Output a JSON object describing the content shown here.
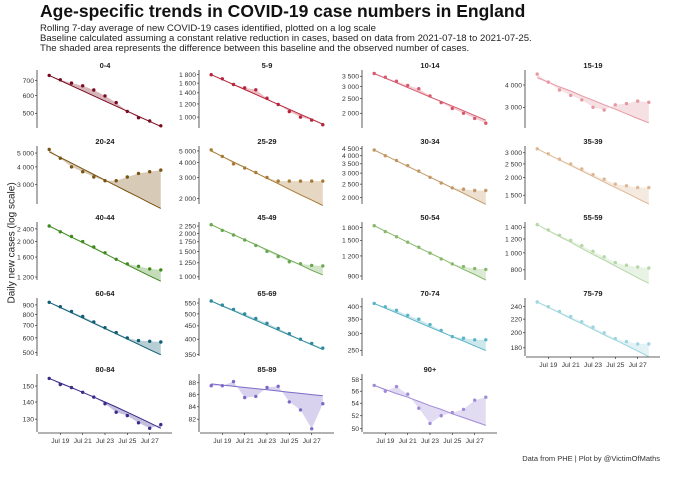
{
  "title": "Age-specific trends in COVID-19 case numbers in England",
  "subtitle_lines": [
    "Rolling 7-day average of new COVID-19 cases identified, plotted on a log scale",
    "Baseline calculated assuming a constant relative reduction in cases, based on data from 2021-07-18 to 2021-07-25.",
    "The shaded area represents the difference between this baseline and the observed number of cases."
  ],
  "y_axis_label": "Daily new cases (log scale)",
  "caption": "Data from PHE | Plot by @VictimOfMaths",
  "x_tick_labels": [
    "Jul 19",
    "Jul 21",
    "Jul 23",
    "Jul 25",
    "Jul 27"
  ],
  "chart_data": {
    "type": "line",
    "scale": "log",
    "x": [
      "2021-07-18",
      "2021-07-19",
      "2021-07-20",
      "2021-07-21",
      "2021-07-22",
      "2021-07-23",
      "2021-07-24",
      "2021-07-25",
      "2021-07-26",
      "2021-07-27",
      "2021-07-28"
    ],
    "xlim": [
      "2021-07-17",
      "2021-07-29"
    ],
    "panels": [
      {
        "label": "0-4",
        "color": "#7a0a1e",
        "yticks": [
          500,
          600,
          700
        ],
        "yticklabels": [
          "500",
          "600",
          "700"
        ],
        "ylim": [
          430,
          780
        ],
        "values": [
          738,
          705,
          682,
          663,
          635,
          598,
          558,
          510,
          478,
          462,
          440
        ],
        "baseline": [
          738,
          700,
          664,
          630,
          598,
          567,
          538,
          511,
          485,
          460,
          437
        ]
      },
      {
        "label": "5-9",
        "color": "#b8243a",
        "yticks": [
          1000,
          1200,
          1400,
          1600,
          1800
        ],
        "yticklabels": [
          "1 000",
          "1 200",
          "1 400",
          "1 600",
          "1 800"
        ],
        "ylim": [
          860,
          1920
        ],
        "values": [
          1800,
          1700,
          1570,
          1500,
          1460,
          1300,
          1190,
          1080,
          1000,
          960,
          900
        ],
        "baseline": [
          1800,
          1680,
          1570,
          1466,
          1369,
          1278,
          1193,
          1114,
          1040,
          971,
          907
        ]
      },
      {
        "label": "10-14",
        "color": "#d65b6e",
        "yticks": [
          2000,
          2500,
          3000,
          3500
        ],
        "yticklabels": [
          "2 000",
          "2 500",
          "3 000",
          "3 500"
        ],
        "ylim": [
          1600,
          3850
        ],
        "values": [
          3650,
          3450,
          3250,
          3050,
          2900,
          2600,
          2350,
          2150,
          2000,
          1850,
          1720
        ],
        "baseline": [
          3650,
          3400,
          3170,
          2950,
          2750,
          2560,
          2390,
          2230,
          2080,
          1930,
          1800
        ]
      },
      {
        "label": "15-19",
        "color": "#e597a2",
        "yticks": [
          3000,
          4000
        ],
        "yticklabels": [
          "3 000",
          "4 000"
        ],
        "ylim": [
          2300,
          4850
        ],
        "values": [
          4600,
          4150,
          3750,
          3500,
          3300,
          3000,
          2900,
          3100,
          3150,
          3250,
          3200
        ],
        "baseline": [
          4400,
          4150,
          3900,
          3700,
          3480,
          3290,
          3100,
          2930,
          2760,
          2600,
          2460
        ]
      },
      {
        "label": "20-24",
        "color": "#7a5312",
        "yticks": [
          3000,
          4000,
          5000
        ],
        "yticklabels": [
          "3 000",
          "4 000",
          "5 000"
        ],
        "ylim": [
          2200,
          5600
        ],
        "values": [
          5300,
          4600,
          4000,
          3700,
          3400,
          3200,
          3200,
          3400,
          3600,
          3700,
          3800
        ],
        "baseline": [
          5100,
          4650,
          4250,
          3880,
          3540,
          3230,
          2950,
          2690,
          2460,
          2240,
          2050
        ]
      },
      {
        "label": "25-29",
        "color": "#a87a36",
        "yticks": [
          2000,
          3000,
          4000,
          5000
        ],
        "yticklabels": [
          "2 000",
          "3 000",
          "4 000",
          "5 000"
        ],
        "ylim": [
          1800,
          5500
        ],
        "values": [
          5100,
          4500,
          3900,
          3600,
          3300,
          3000,
          2800,
          2800,
          2800,
          2800,
          2800
        ],
        "baseline": [
          5000,
          4500,
          4050,
          3650,
          3280,
          2950,
          2660,
          2390,
          2150,
          1940,
          1750
        ]
      },
      {
        "label": "30-34",
        "color": "#c29866",
        "yticks": [
          2000,
          2500,
          3000,
          3500,
          4000,
          4500
        ],
        "yticklabels": [
          "2 000",
          "2 500",
          "3 000",
          "3 500",
          "4 000",
          "4 500"
        ],
        "ylim": [
          1800,
          4700
        ],
        "values": [
          4400,
          4000,
          3700,
          3400,
          3100,
          2800,
          2550,
          2350,
          2300,
          2250,
          2250
        ],
        "baseline": [
          4400,
          4020,
          3680,
          3360,
          3070,
          2810,
          2570,
          2350,
          2150,
          1960,
          1790
        ]
      },
      {
        "label": "35-39",
        "color": "#deb896",
        "yticks": [
          1500,
          2000,
          2500,
          3000
        ],
        "yticklabels": [
          "1 500",
          "2 000",
          "2 500",
          "3 000"
        ],
        "ylim": [
          1300,
          3350
        ],
        "values": [
          3200,
          2950,
          2700,
          2500,
          2300,
          2100,
          1950,
          1800,
          1750,
          1700,
          1700
        ],
        "baseline": [
          3200,
          2920,
          2670,
          2440,
          2230,
          2040,
          1860,
          1700,
          1560,
          1420,
          1300
        ]
      },
      {
        "label": "40-44",
        "color": "#3f8a1f",
        "yticks": [
          1200,
          1600,
          2000,
          2400
        ],
        "yticklabels": [
          "1 200",
          "1 600",
          "2 000",
          "2 400"
        ],
        "ylim": [
          1150,
          2650
        ],
        "values": [
          2500,
          2300,
          2150,
          2000,
          1850,
          1700,
          1550,
          1450,
          1400,
          1350,
          1330
        ],
        "baseline": [
          2500,
          2310,
          2130,
          1970,
          1820,
          1680,
          1550,
          1430,
          1320,
          1220,
          1130
        ]
      },
      {
        "label": "45-49",
        "color": "#6aa84f",
        "yticks": [
          1000,
          1250,
          1500,
          1750,
          2000,
          2250
        ],
        "yticklabels": [
          "1 000",
          "1 250",
          "1 500",
          "1 750",
          "2 000",
          "2 250"
        ],
        "ylim": [
          950,
          2400
        ],
        "values": [
          2300,
          2100,
          1950,
          1800,
          1650,
          1500,
          1380,
          1270,
          1230,
          1200,
          1190
        ],
        "baseline": [
          2300,
          2120,
          1960,
          1810,
          1670,
          1540,
          1420,
          1310,
          1210,
          1110,
          1030
        ]
      },
      {
        "label": "50-54",
        "color": "#88b96b",
        "yticks": [
          900,
          1200,
          1500,
          1800
        ],
        "yticklabels": [
          "900",
          "1 200",
          "1 500",
          "1 800"
        ],
        "ylim": [
          850,
          1950
        ],
        "values": [
          1850,
          1700,
          1580,
          1460,
          1360,
          1250,
          1150,
          1070,
          1030,
          1000,
          990
        ],
        "baseline": [
          1850,
          1710,
          1580,
          1460,
          1350,
          1250,
          1160,
          1070,
          990,
          920,
          850
        ]
      },
      {
        "label": "55-59",
        "color": "#b6d7a8",
        "yticks": [
          800,
          1000,
          1200,
          1400
        ],
        "yticklabels": [
          "800",
          "1 000",
          "1 200",
          "1 400"
        ],
        "ylim": [
          700,
          1500
        ],
        "values": [
          1450,
          1350,
          1260,
          1180,
          1100,
          1020,
          950,
          880,
          850,
          830,
          820
        ],
        "baseline": [
          1450,
          1340,
          1240,
          1150,
          1060,
          980,
          910,
          840,
          780,
          720,
          670
        ]
      },
      {
        "label": "60-64",
        "color": "#0f5d74",
        "yticks": [
          500,
          600,
          700,
          800,
          900
        ],
        "yticklabels": [
          "500",
          "600",
          "700",
          "800",
          "900"
        ],
        "ylim": [
          480,
          980
        ],
        "values": [
          930,
          880,
          830,
          780,
          730,
          680,
          640,
          600,
          580,
          575,
          570
        ],
        "baseline": [
          930,
          872,
          817,
          766,
          718,
          673,
          631,
          591,
          554,
          519,
          487
        ]
      },
      {
        "label": "65-69",
        "color": "#2d8a9c",
        "yticks": [
          350,
          400,
          450,
          500,
          550
        ],
        "yticklabels": [
          "350",
          "400",
          "450",
          "500",
          "550"
        ],
        "ylim": [
          345,
          575
        ],
        "values": [
          560,
          540,
          520,
          500,
          480,
          460,
          440,
          420,
          400,
          385,
          370
        ],
        "baseline": [
          560,
          536,
          514,
          492,
          472,
          452,
          433,
          415,
          398,
          381,
          365
        ]
      },
      {
        "label": "70-74",
        "color": "#59b4c4",
        "yticks": [
          250,
          300,
          350,
          400
        ],
        "yticklabels": [
          "250",
          "300",
          "350",
          "400"
        ],
        "ylim": [
          235,
          440
        ],
        "values": [
          415,
          400,
          385,
          365,
          350,
          330,
          310,
          290,
          285,
          280,
          280
        ],
        "baseline": [
          415,
          394,
          375,
          356,
          338,
          321,
          305,
          290,
          276,
          262,
          249
        ]
      },
      {
        "label": "75-79",
        "color": "#9fd5de",
        "yticks": [
          180,
          200,
          220,
          240
        ],
        "yticklabels": [
          "180",
          "200",
          "220",
          "240"
        ],
        "ylim": [
          170,
          255
        ],
        "values": [
          248,
          240,
          232,
          224,
          216,
          208,
          200,
          192,
          188,
          185,
          185
        ],
        "baseline": [
          248,
          239,
          230,
          221,
          213,
          205,
          197,
          190,
          183,
          176,
          169
        ]
      },
      {
        "label": "80-84",
        "color": "#3a2a8c",
        "yticks": [
          130,
          140,
          150
        ],
        "yticklabels": [
          "130",
          "140",
          "150"
        ],
        "ylim": [
          123,
          158
        ],
        "values": [
          155,
          151,
          149,
          146,
          143,
          139,
          134,
          132,
          128,
          125,
          127
        ],
        "baseline": [
          155,
          152,
          149,
          146,
          143,
          140,
          137,
          134,
          131,
          128,
          125
        ]
      },
      {
        "label": "85-89",
        "color": "#7d6ac8",
        "yticks": [
          82,
          84,
          86,
          88
        ],
        "yticklabels": [
          "82",
          "84",
          "86",
          "88"
        ],
        "ylim": [
          80,
          89.5
        ],
        "values": [
          87.5,
          87.5,
          88.2,
          85.5,
          85.7,
          87.2,
          87.4,
          84.8,
          83.5,
          80.5,
          84.5
        ],
        "baseline": [
          87.8,
          87.6,
          87.4,
          87.2,
          87.0,
          86.8,
          86.6,
          86.4,
          86.2,
          86.0,
          85.8
        ]
      },
      {
        "label": "90+",
        "color": "#a08bd8",
        "yticks": [
          50,
          52,
          54,
          56,
          58
        ],
        "yticklabels": [
          "50",
          "52",
          "54",
          "56",
          "58"
        ],
        "ylim": [
          49.5,
          59
        ],
        "values": [
          57.0,
          56.0,
          56.8,
          55.5,
          53.2,
          50.8,
          52.0,
          52.5,
          53.0,
          54.5,
          55.0
        ],
        "baseline": [
          57.0,
          56.3,
          55.6,
          55.0,
          54.3,
          53.6,
          53.0,
          52.3,
          51.7,
          51.1,
          50.5
        ]
      }
    ]
  }
}
